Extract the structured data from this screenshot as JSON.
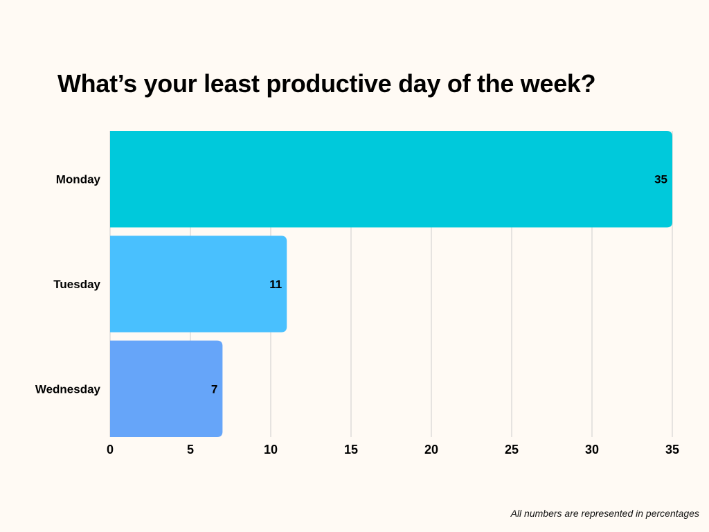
{
  "chart_data": {
    "type": "bar",
    "orientation": "horizontal",
    "title": "What’s your least productive day of the week?",
    "categories": [
      "Monday",
      "Tuesday",
      "Wednesday"
    ],
    "values": [
      35,
      11,
      7
    ],
    "xlim": [
      0,
      35
    ],
    "x_ticks": [
      0,
      5,
      10,
      15,
      20,
      25,
      30,
      35
    ],
    "xlabel": "",
    "ylabel": "",
    "grid": "vertical",
    "legend": "none",
    "data_labels": [
      "35",
      "11",
      "7"
    ],
    "colors": [
      "#00c9db",
      "#49c0fe",
      "#66a5f9"
    ]
  },
  "footnote": "All numbers are represented in percentages",
  "style": {
    "background": "#fffaf4",
    "gridline_color": "#cccccc",
    "text_color": "#000000"
  }
}
